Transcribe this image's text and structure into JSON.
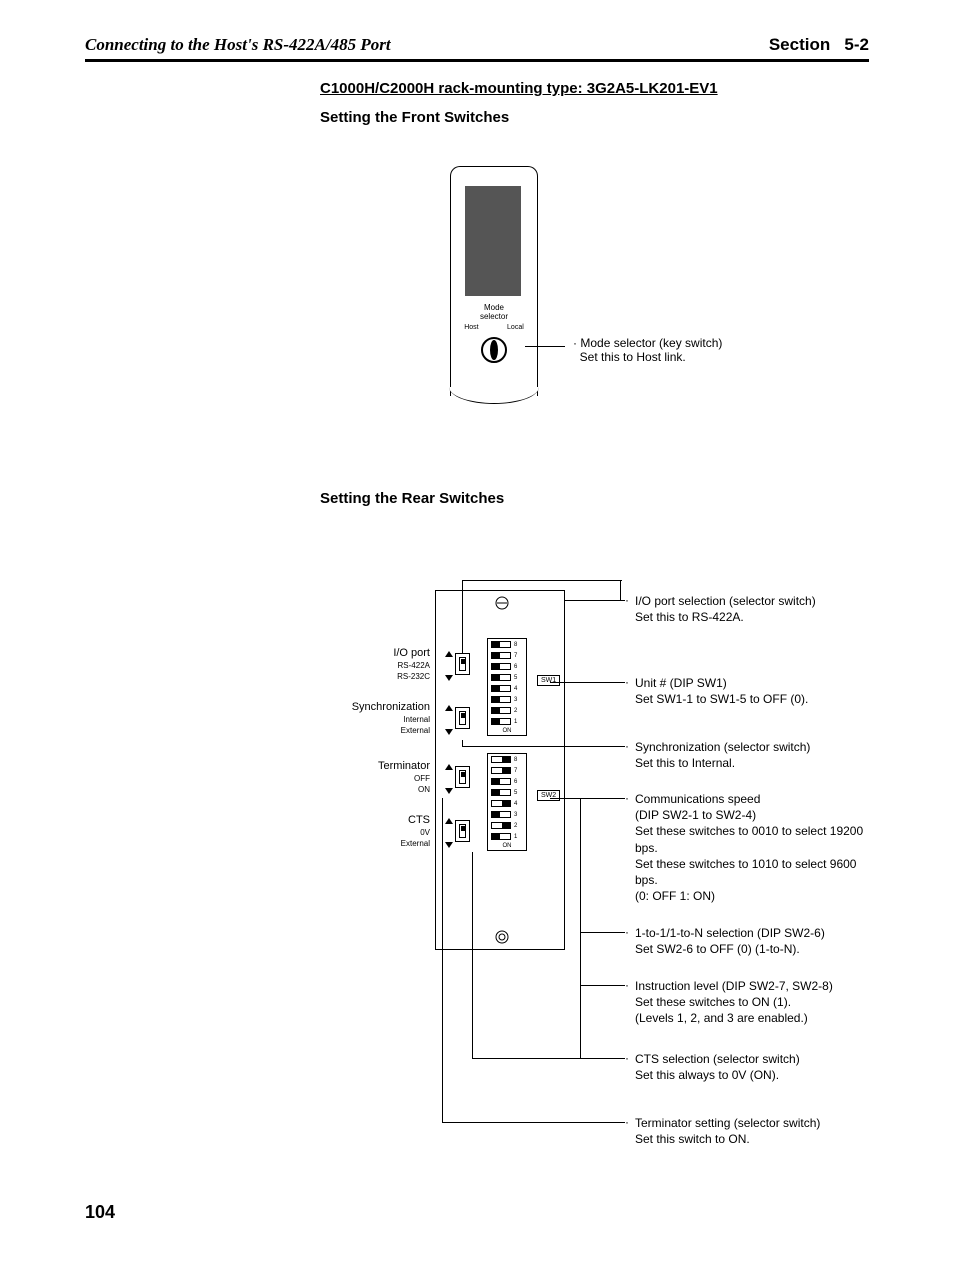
{
  "header": {
    "left": "Connecting to the Host's RS-422A/485 Port",
    "section_label": "Section",
    "section_num": "5-2"
  },
  "titles": {
    "device": "C1000H/C2000H rack-mounting type: 3G2A5-LK201-EV1",
    "front": "Setting the Front Switches",
    "rear": "Setting the Rear Switches"
  },
  "front": {
    "mode_label_1": "Mode",
    "mode_label_2": "selector",
    "host": "Host",
    "local": "Local",
    "callout_1": "Mode selector (key switch)",
    "callout_2": "Set this to Host link."
  },
  "left_labels": {
    "ioport": "I/O port",
    "rs422a": "RS-422A",
    "rs232c": "RS-232C",
    "sync": "Synchronization",
    "internal": "Internal",
    "external": "External",
    "term": "Terminator",
    "off": "OFF",
    "on": "ON",
    "cts": "CTS",
    "v0": "0V",
    "ext2": "External"
  },
  "dip": {
    "sw1": "SW1",
    "sw2": "SW2",
    "on": "ON",
    "nums": [
      "8",
      "7",
      "6",
      "5",
      "4",
      "3",
      "2",
      "1"
    ],
    "sw1_pos": [
      "left",
      "left",
      "left",
      "left",
      "left",
      "left",
      "left",
      "left"
    ],
    "sw2_pos": [
      "right",
      "right",
      "left",
      "left",
      "right",
      "left",
      "right",
      "left"
    ]
  },
  "callouts": {
    "c1_h": "I/O port selection (selector switch)",
    "c1_s": "Set this to RS-422A.",
    "c2_h": "Unit # (DIP SW1)",
    "c2_s": "Set SW1-1 to SW1-5 to OFF (0).",
    "c3_h": "Synchronization (selector switch)",
    "c3_s": "Set this to Internal.",
    "c4_h": "Communications speed",
    "c4_h2": "(DIP SW2-1 to SW2-4)",
    "c4_s1": "Set these switches to 0010 to select 19200 bps.",
    "c4_s2": "Set these switches to 1010 to select 9600 bps.",
    "c4_s3": "(0: OFF 1: ON)",
    "c5_h": "1-to-1/1-to-N selection (DIP SW2-6)",
    "c5_s": "Set SW2-6 to OFF (0) (1-to-N).",
    "c6_h": "Instruction level (DIP SW2-7, SW2-8)",
    "c6_s1": "Set these switches to ON (1).",
    "c6_s2": "(Levels 1, 2, and 3 are enabled.)",
    "c7_h": "CTS selection (selector switch)",
    "c7_s": "Set this always to 0V (ON).",
    "c8_h": "Terminator setting (selector switch)",
    "c8_s": "Set this switch to ON."
  },
  "page": "104",
  "colors": {
    "text": "#000000",
    "bg": "#ffffff",
    "dark": "#555555"
  }
}
